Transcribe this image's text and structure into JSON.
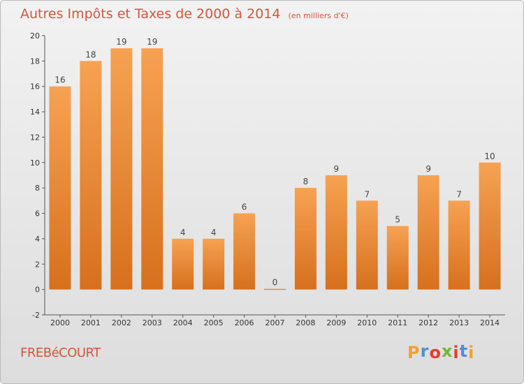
{
  "colors": {
    "bar_top": "#f6a253",
    "bar_bottom": "#d6701d",
    "title": "#d1563f",
    "axis": "#555555",
    "grid": "#cfcfcf"
  },
  "header": {
    "title": "Autres Impôts et Taxes de 2000 à 2014",
    "subtitle": "(en milliers d'€)"
  },
  "footer": {
    "town": "FREBéCOURT",
    "logo": [
      "P",
      "r",
      "o",
      "x",
      "i",
      "t",
      "i"
    ],
    "logo_colors": [
      "#f2a22a",
      "#4d8fd8",
      "#e63d2f",
      "#71b43a",
      "#e63d2f",
      "#4d8fd8",
      "#f2a22a"
    ]
  },
  "chart_data": {
    "type": "bar",
    "title": "Autres Impôts et Taxes de 2000 à 2014",
    "subtitle": "(en milliers d'€)",
    "categories": [
      "2000",
      "2001",
      "2002",
      "2003",
      "2004",
      "2005",
      "2006",
      "2007",
      "2008",
      "2009",
      "2010",
      "2011",
      "2012",
      "2013",
      "2014"
    ],
    "values": [
      16,
      18,
      19,
      19,
      4,
      4,
      6,
      0,
      8,
      9,
      7,
      5,
      9,
      7,
      10
    ],
    "ylim": [
      -2,
      20
    ],
    "yticks": [
      -2,
      0,
      2,
      4,
      6,
      8,
      10,
      12,
      14,
      16,
      18,
      20
    ],
    "grid": false,
    "legend": "none"
  }
}
